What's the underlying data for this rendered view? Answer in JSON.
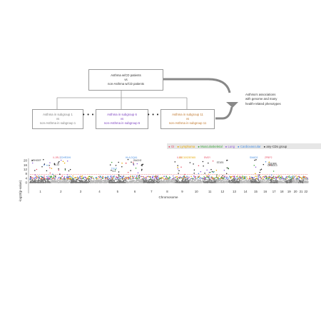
{
  "top_box": {
    "line1": "Asthma w/CD patients",
    "line2": "vs",
    "line3": "non-Asthma w/CD patients"
  },
  "subgroups": [
    {
      "line1": "Asthma in subgroup 1",
      "line2": "vs",
      "line3": "non-Asthma in subgroup 1",
      "color": "#7f7f7f"
    },
    {
      "line1": "Asthma in subgroup 6",
      "line2": "vs",
      "line3": "non-Asthma in subgroup 6",
      "color": "#7b3fbf"
    },
    {
      "line1": "Asthma in subgroup 11",
      "line2": "vs",
      "line3": "non-Asthma in subgroup 11",
      "color": "#c0792f"
    }
  ],
  "ellipsis": "• • •",
  "associations": {
    "line1": "Asthma's associations",
    "line2": "with genome and many",
    "line3": "health-related phenotypes"
  },
  "legend": [
    {
      "label": "GI",
      "color": "#e8536a"
    },
    {
      "label": "Lymphoma",
      "color": "#e6a800"
    },
    {
      "label": "Musculoskeletal",
      "color": "#3aa23a"
    },
    {
      "label": "Lung",
      "color": "#8e5cd9"
    },
    {
      "label": "Cardiovascular",
      "color": "#4a90e2"
    },
    {
      "label": "any-CDs group",
      "color": "#333333"
    }
  ],
  "plot": {
    "ylabel": "-log10(p-value)",
    "xlabel": "Chromosome",
    "yticks": [
      "0",
      "4",
      "8",
      "12",
      "16",
      "20"
    ],
    "chromosomes": [
      "1",
      "2",
      "3",
      "4",
      "5",
      "6",
      "7",
      "8",
      "9",
      "10",
      "11",
      "12",
      "13",
      "14",
      "15",
      "16",
      "17",
      "18",
      "19",
      "20",
      "21",
      "22"
    ],
    "gene_labels": [
      {
        "text": "ARHGEF",
        "chrom": 1,
        "y": 19,
        "color": "#333333"
      },
      {
        "text": "IL1RL1",
        "chrom": 2,
        "y": 21.5,
        "color": "#e8536a"
      },
      {
        "text": "CDHR3/HI",
        "chrom": 2.7,
        "y": 21.5,
        "color": "#4a90e2"
      },
      {
        "text": "IL33",
        "chrom": 2,
        "y": 15,
        "color": "#333333"
      },
      {
        "text": "TSLP",
        "chrom": 5,
        "y": 11.5,
        "color": "#4a90e2"
      },
      {
        "text": "IL4",
        "chrom": 5,
        "y": 9.2,
        "color": "#333333"
      },
      {
        "text": "HLA-DQA1",
        "chrom": 6,
        "y": 21.5,
        "color": "#4a90e2"
      },
      {
        "text": "BACH2",
        "chrom": 6.6,
        "y": 19,
        "color": "#333333"
      },
      {
        "text": "IL33",
        "chrom": 9,
        "y": 21.5,
        "color": "#e8536a"
      },
      {
        "text": "LOC100287465",
        "chrom": 9.9,
        "y": 21.5,
        "color": "#e6a800"
      },
      {
        "text": "EMSY",
        "chrom": 11,
        "y": 21.5,
        "color": "#e8536a"
      },
      {
        "text": "STAT6",
        "chrom": 12,
        "y": 17,
        "color": "#333333"
      },
      {
        "text": "SMAD3",
        "chrom": 15,
        "y": 21.5,
        "color": "#4a90e2"
      },
      {
        "text": "ZPBP2",
        "chrom": 16.9,
        "y": 21.5,
        "color": "#e8536a"
      },
      {
        "text": "GSDMB",
        "chrom": 17,
        "y": 16,
        "color": "#333333"
      },
      {
        "text": "ORMDL3",
        "chrom": 17,
        "y": 14.5,
        "color": "#333333"
      }
    ]
  }
}
